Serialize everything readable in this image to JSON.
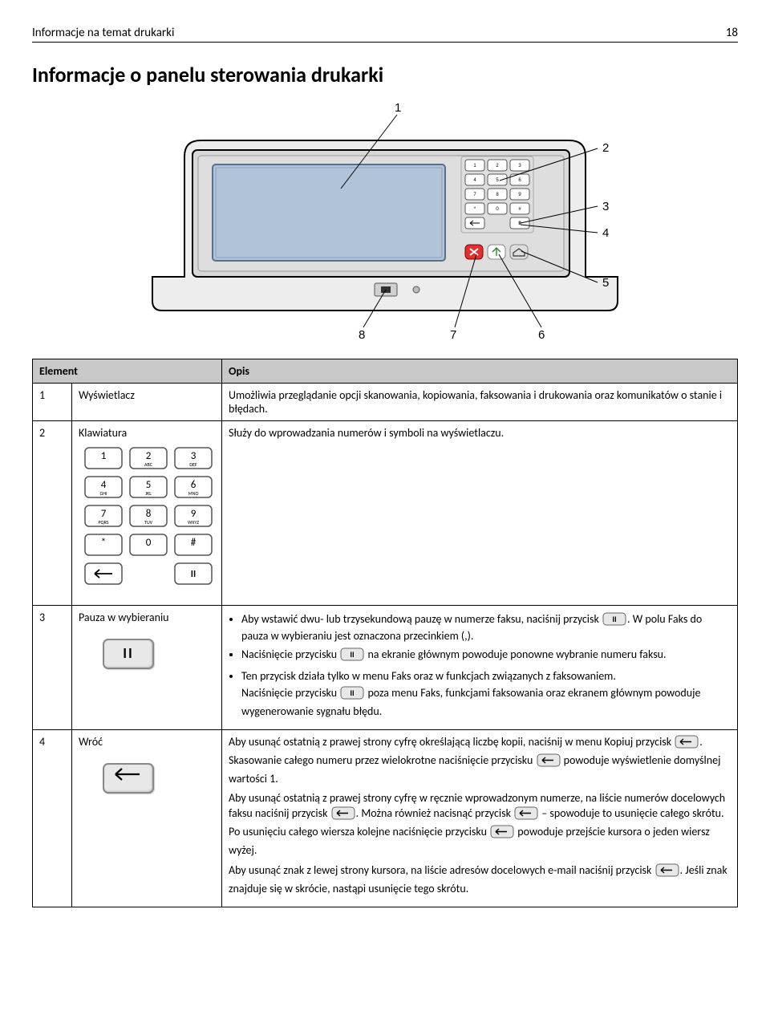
{
  "header": {
    "title": "Informacje na temat drukarki",
    "page": "18"
  },
  "section_title": "Informacje o panelu sterowania drukarki",
  "diagram": {
    "callouts": [
      "1",
      "2",
      "3",
      "4",
      "5",
      "6",
      "7",
      "8"
    ],
    "panel_bg": "#e5e5e5",
    "screen_bg": "#b0c3d9",
    "button_bg": "#dedede",
    "stop_btn_bg": "#e03030",
    "go_btn_bg": "#ffffff",
    "home_btn_bg": "#dedede"
  },
  "table": {
    "headers": [
      "Element",
      "Opis"
    ],
    "rows": [
      {
        "num": "1",
        "name": "Wyświetlacz",
        "desc_plain": "Umożliwia przeglądanie opcji skanowania, kopiowania, faksowania i drukowania oraz komunikatów o stanie i błędach."
      },
      {
        "num": "2",
        "name": "Klawiatura",
        "desc_plain": "Służy do wprowadzania numerów i symboli na wyświetlaczu.",
        "has_keypad": true,
        "keypad": {
          "keys": [
            {
              "n": "1",
              "s": ""
            },
            {
              "n": "2",
              "s": "ABC"
            },
            {
              "n": "3",
              "s": "DEF"
            },
            {
              "n": "4",
              "s": "GHI"
            },
            {
              "n": "5",
              "s": "JKL"
            },
            {
              "n": "6",
              "s": "MNO"
            },
            {
              "n": "7",
              "s": "PQRS"
            },
            {
              "n": "8",
              "s": "TUV"
            },
            {
              "n": "9",
              "s": "WXYZ"
            },
            {
              "n": "*",
              "s": ""
            },
            {
              "n": "0",
              "s": ""
            },
            {
              "n": "#",
              "s": ""
            }
          ],
          "back_glyph": "←",
          "pause_glyph": "II",
          "key_fill": "#ffffff",
          "key_stroke": "#555555"
        }
      },
      {
        "num": "3",
        "name": "Pauza w wybieraniu",
        "large_pause_label": "II",
        "bullets": [
          {
            "pre": "Aby wstawić dwu- lub trzysekundową pauzę w numerze faksu, naciśnij przycisk ",
            "icon": "pause",
            "post": ". W polu Faks do pauza w wybieraniu jest oznaczona przecinkiem (,)."
          },
          {
            "pre": "Naciśnięcie przycisku ",
            "icon": "pause",
            "post": " na ekranie głównym powoduje ponowne wybranie numeru faksu."
          },
          {
            "plain": "Ten przycisk działa tylko w menu Faks oraz w funkcjach związanych z faksowaniem.",
            "tail_pre": "Naciśnięcie przycisku ",
            "tail_icon": "pause",
            "tail_post": " poza menu Faks, funkcjami faksowania oraz ekranem głównym powoduje wygenerowanie sygnału błędu."
          }
        ]
      },
      {
        "num": "4",
        "name": "Wróć",
        "large_back_glyph": "←",
        "para1_pre": "Aby usunąć ostatnią z prawej strony cyfrę określającą liczbę kopii, naciśnij w menu Kopiuj przycisk ",
        "para1_mid": ". Skasowanie całego numeru przez wielokrotne naciśnięcie przycisku ",
        "para1_post": " powoduje wyświetlenie domyślnej wartości 1.",
        "para2_pre": "Aby usunąć ostatnią z prawej strony cyfrę w ręcznie wprowadzonym numerze, na liście numerów docelowych faksu naciśnij przycisk ",
        "para2_mid": ". Można również nacisnąć przycisk ",
        "para2_mid2": " – spowoduje to usunięcie całego skrótu. Po usunięciu całego wiersza kolejne naciśnięcie przycisku ",
        "para2_post": " powoduje przejście kursora o jeden wiersz wyżej.",
        "para3_pre": "Aby usunąć znak z lewej strony kursora, na liście adresów docelowych e-mail naciśnij przycisk ",
        "para3_post": ". Jeśli znak znajduje się w skrócie, nastąpi usunięcie tego skrótu."
      }
    ]
  },
  "icons": {
    "key_fill": "#e8e8e8",
    "key_stroke": "#666"
  }
}
